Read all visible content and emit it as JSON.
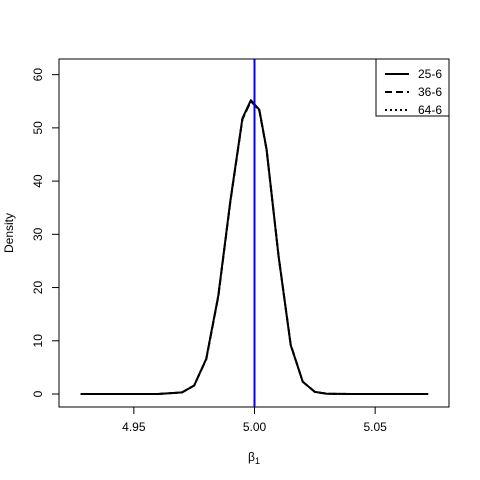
{
  "chart_data": {
    "type": "line",
    "title": "",
    "xlabel_symbol": "β",
    "xlabel_subscript": "1",
    "ylabel": "Density",
    "xlim": [
      4.925,
      5.075
    ],
    "ylim": [
      0,
      62
    ],
    "xticks": [
      4.95,
      5.0,
      5.05
    ],
    "xtick_labels": [
      "4.95",
      "5.00",
      "5.05"
    ],
    "yticks": [
      0,
      10,
      20,
      30,
      40,
      50,
      60
    ],
    "ytick_labels": [
      "0",
      "10",
      "20",
      "30",
      "40",
      "50",
      "60"
    ],
    "grid": false,
    "legend_position": "top-right",
    "reference_line": {
      "x": 5.0,
      "color": "#0000ff"
    },
    "x": [
      4.928,
      4.94,
      4.95,
      4.96,
      4.97,
      4.975,
      4.98,
      4.985,
      4.99,
      4.995,
      4.9985,
      5.002,
      5.005,
      5.01,
      5.015,
      5.02,
      5.025,
      5.03,
      5.04,
      5.05,
      5.06,
      5.072
    ],
    "series": [
      {
        "name": "25-6",
        "line_style": "solid",
        "color": "#000000",
        "values": [
          0,
          0,
          0,
          0,
          0.3,
          1.6,
          6.6,
          18.5,
          36.3,
          51.8,
          55.2,
          53.4,
          46.0,
          25.8,
          9.2,
          2.3,
          0.4,
          0.05,
          0,
          0,
          0,
          0
        ]
      },
      {
        "name": "36-6",
        "line_style": "dashed",
        "color": "#000000",
        "values": [
          0,
          0,
          0,
          0,
          0.3,
          1.6,
          6.5,
          18.3,
          36.1,
          51.6,
          55.0,
          53.3,
          45.9,
          25.9,
          9.3,
          2.3,
          0.4,
          0.05,
          0,
          0,
          0,
          0
        ]
      },
      {
        "name": "64-6",
        "line_style": "dotted",
        "color": "#000000",
        "values": [
          0,
          0,
          0,
          0,
          0.3,
          1.6,
          6.6,
          18.4,
          36.2,
          51.7,
          55.1,
          53.3,
          45.9,
          25.8,
          9.2,
          2.3,
          0.4,
          0.05,
          0,
          0,
          0,
          0
        ]
      }
    ]
  }
}
